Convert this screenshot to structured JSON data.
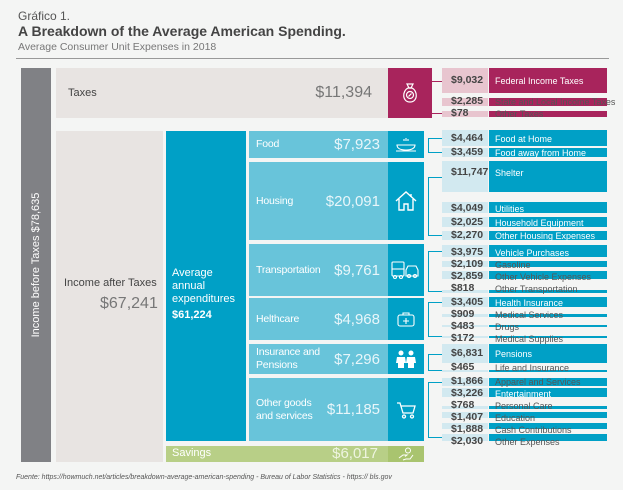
{
  "header": {
    "kicker": "Gráfico 1.",
    "title": "A Breakdown of the Average American Spending.",
    "subtitle": "Average Consumer Unit Expenses in 2018"
  },
  "income_before_taxes": {
    "label": "Income before Taxes",
    "value": "$78,635"
  },
  "taxes": {
    "label": "Taxes",
    "value": "$11,394",
    "icon": "money-bag-percent-icon",
    "color": "#a8245c"
  },
  "income_after_taxes": {
    "label": "Income after Taxes",
    "value": "$67,241"
  },
  "average_expenditures": {
    "label": "Average annual expenditures",
    "value": "$61,224",
    "color": "#00a0c6"
  },
  "savings": {
    "label": "Savings",
    "value": "$6,017",
    "icon": "hand-coin-icon",
    "color": "#b8cf87"
  },
  "categories": [
    {
      "label": "Food",
      "value": "$7,923",
      "icon": "food-dish-icon"
    },
    {
      "label": "Housing",
      "value": "$20,091",
      "icon": "house-icon"
    },
    {
      "label": "Transportation",
      "value": "$9,761",
      "icon": "bus-car-icon"
    },
    {
      "label": "Helthcare",
      "value": "$4,968",
      "icon": "first-aid-kit-icon"
    },
    {
      "label": "Insurance and Pensions",
      "value": "$7,296",
      "icon": "elderly-couple-icon"
    },
    {
      "label": "Other goods and services",
      "value": "$11,185",
      "icon": "shopping-cart-icon"
    }
  ],
  "details": [
    {
      "group": "taxes",
      "value": "$9,032",
      "label": "Federal Income Taxes"
    },
    {
      "group": "taxes",
      "value": "$2,285",
      "label": "State and Local Income Taxes"
    },
    {
      "group": "taxes",
      "value": "$78",
      "label": "Other Taxes"
    },
    {
      "group": "food",
      "value": "$4,464",
      "label": "Food at Home"
    },
    {
      "group": "food",
      "value": "$3,459",
      "label": "Food away from Home"
    },
    {
      "group": "housing",
      "value": "$11,747",
      "label": "Shelter"
    },
    {
      "group": "housing",
      "value": "$4,049",
      "label": "Utilities"
    },
    {
      "group": "housing",
      "value": "$2,025",
      "label": "Household Equipment"
    },
    {
      "group": "housing",
      "value": "$2,270",
      "label": "Other Housing Expenses"
    },
    {
      "group": "transportation",
      "value": "$3,975",
      "label": "Vehicle Purchases"
    },
    {
      "group": "transportation",
      "value": "$2,109",
      "label": "Gasoline"
    },
    {
      "group": "transportation",
      "value": "$2,859",
      "label": "Other Vehicle Expenses"
    },
    {
      "group": "transportation",
      "value": "$818",
      "label": "Other Transportation"
    },
    {
      "group": "healthcare",
      "value": "$3,405",
      "label": "Health Insurance"
    },
    {
      "group": "healthcare",
      "value": "$909",
      "label": "Medical Services"
    },
    {
      "group": "healthcare",
      "value": "$483",
      "label": "Drugs"
    },
    {
      "group": "healthcare",
      "value": "$172",
      "label": "Medical Supplies"
    },
    {
      "group": "insurance",
      "value": "$6,831",
      "label": "Pensions"
    },
    {
      "group": "insurance",
      "value": "$465",
      "label": "Life and Insurance"
    },
    {
      "group": "other",
      "value": "$1,866",
      "label": "Apparel and Services"
    },
    {
      "group": "other",
      "value": "$3,226",
      "label": "Entertainment"
    },
    {
      "group": "other",
      "value": "$768",
      "label": "Personal Care"
    },
    {
      "group": "other",
      "value": "$1,407",
      "label": "Education"
    },
    {
      "group": "other",
      "value": "$1,888",
      "label": "Cash Contributions"
    },
    {
      "group": "other",
      "value": "$2,030",
      "label": "Other Expenses"
    }
  ],
  "colors": {
    "taxes_bar": "#a8245c",
    "taxes_value_bg": "#e8c5cf",
    "detail_bar": "#00a0c6",
    "detail_value_bg": "#d2e9f0",
    "category_bg": "#68c4da",
    "income_bar": "#808185"
  },
  "source": "Fuente: https://howmuch.net/articles/breakdown-average-american-spending - Bureau of Labor Statistics - https:// bls.gov"
}
